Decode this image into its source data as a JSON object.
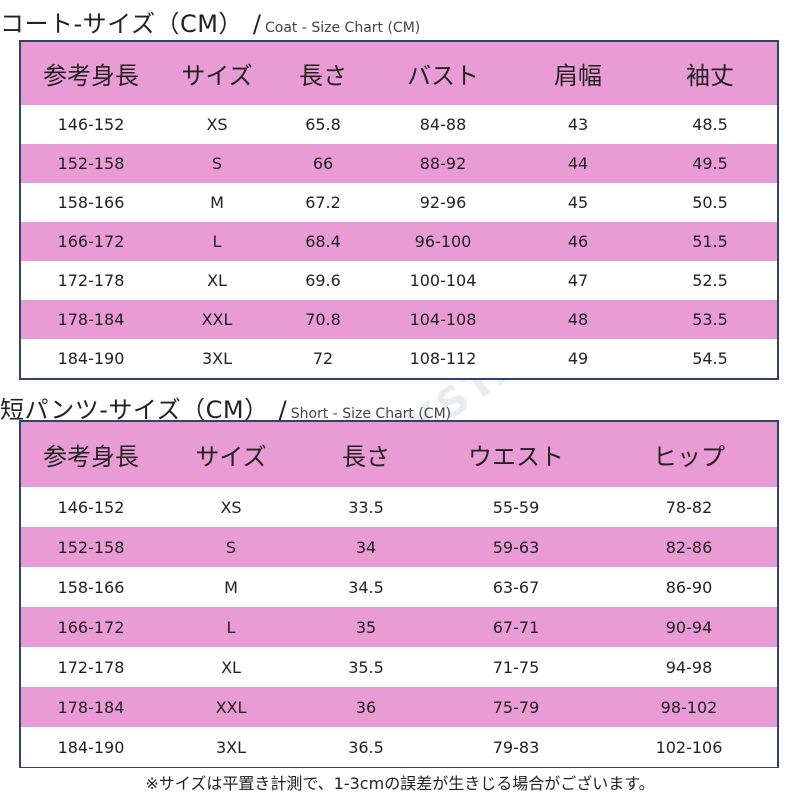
{
  "coat": {
    "title": "コート-サイズ（CM）",
    "slash": "/",
    "subtitle": "Coat - Size Chart (CM)",
    "headers": [
      "参考身長",
      "サイズ",
      "長さ",
      "バスト",
      "肩幅",
      "袖丈"
    ],
    "rows": [
      [
        "146-152",
        "XS",
        "65.8",
        "84-88",
        "43",
        "48.5"
      ],
      [
        "152-158",
        "S",
        "66",
        "88-92",
        "44",
        "49.5"
      ],
      [
        "158-166",
        "M",
        "67.2",
        "92-96",
        "45",
        "50.5"
      ],
      [
        "166-172",
        "L",
        "68.4",
        "96-100",
        "46",
        "51.5"
      ],
      [
        "172-178",
        "XL",
        "69.6",
        "100-104",
        "47",
        "52.5"
      ],
      [
        "178-184",
        "XXL",
        "70.8",
        "104-108",
        "48",
        "53.5"
      ],
      [
        "184-190",
        "3XL",
        "72",
        "108-112",
        "49",
        "54.5"
      ]
    ]
  },
  "shorts": {
    "title": "短パンツ-サイズ（CM）",
    "slash": "/",
    "subtitle": "Short - Size Chart (CM)",
    "headers": [
      "参考身長",
      "サイズ",
      "長さ",
      "ウエスト",
      "ヒップ"
    ],
    "rows": [
      [
        "146-152",
        "XS",
        "33.5",
        "55-59",
        "78-82"
      ],
      [
        "152-158",
        "S",
        "34",
        "59-63",
        "82-86"
      ],
      [
        "158-166",
        "M",
        "34.5",
        "63-67",
        "86-90"
      ],
      [
        "166-172",
        "L",
        "35",
        "67-71",
        "90-94"
      ],
      [
        "172-178",
        "XL",
        "35.5",
        "71-75",
        "94-98"
      ],
      [
        "178-184",
        "XXL",
        "36",
        "75-79",
        "98-102"
      ],
      [
        "184-190",
        "3XL",
        "36.5",
        "79-83",
        "102-106"
      ]
    ]
  },
  "note": "※サイズは平置き計測で、1-3cmの誤差が生きじる場合がございます。",
  "watermark": "CRYSTAL",
  "colors": {
    "header": "#e99bd3",
    "stripe": "#e99bd3",
    "border": "#31426f",
    "background": "#ffffff"
  }
}
